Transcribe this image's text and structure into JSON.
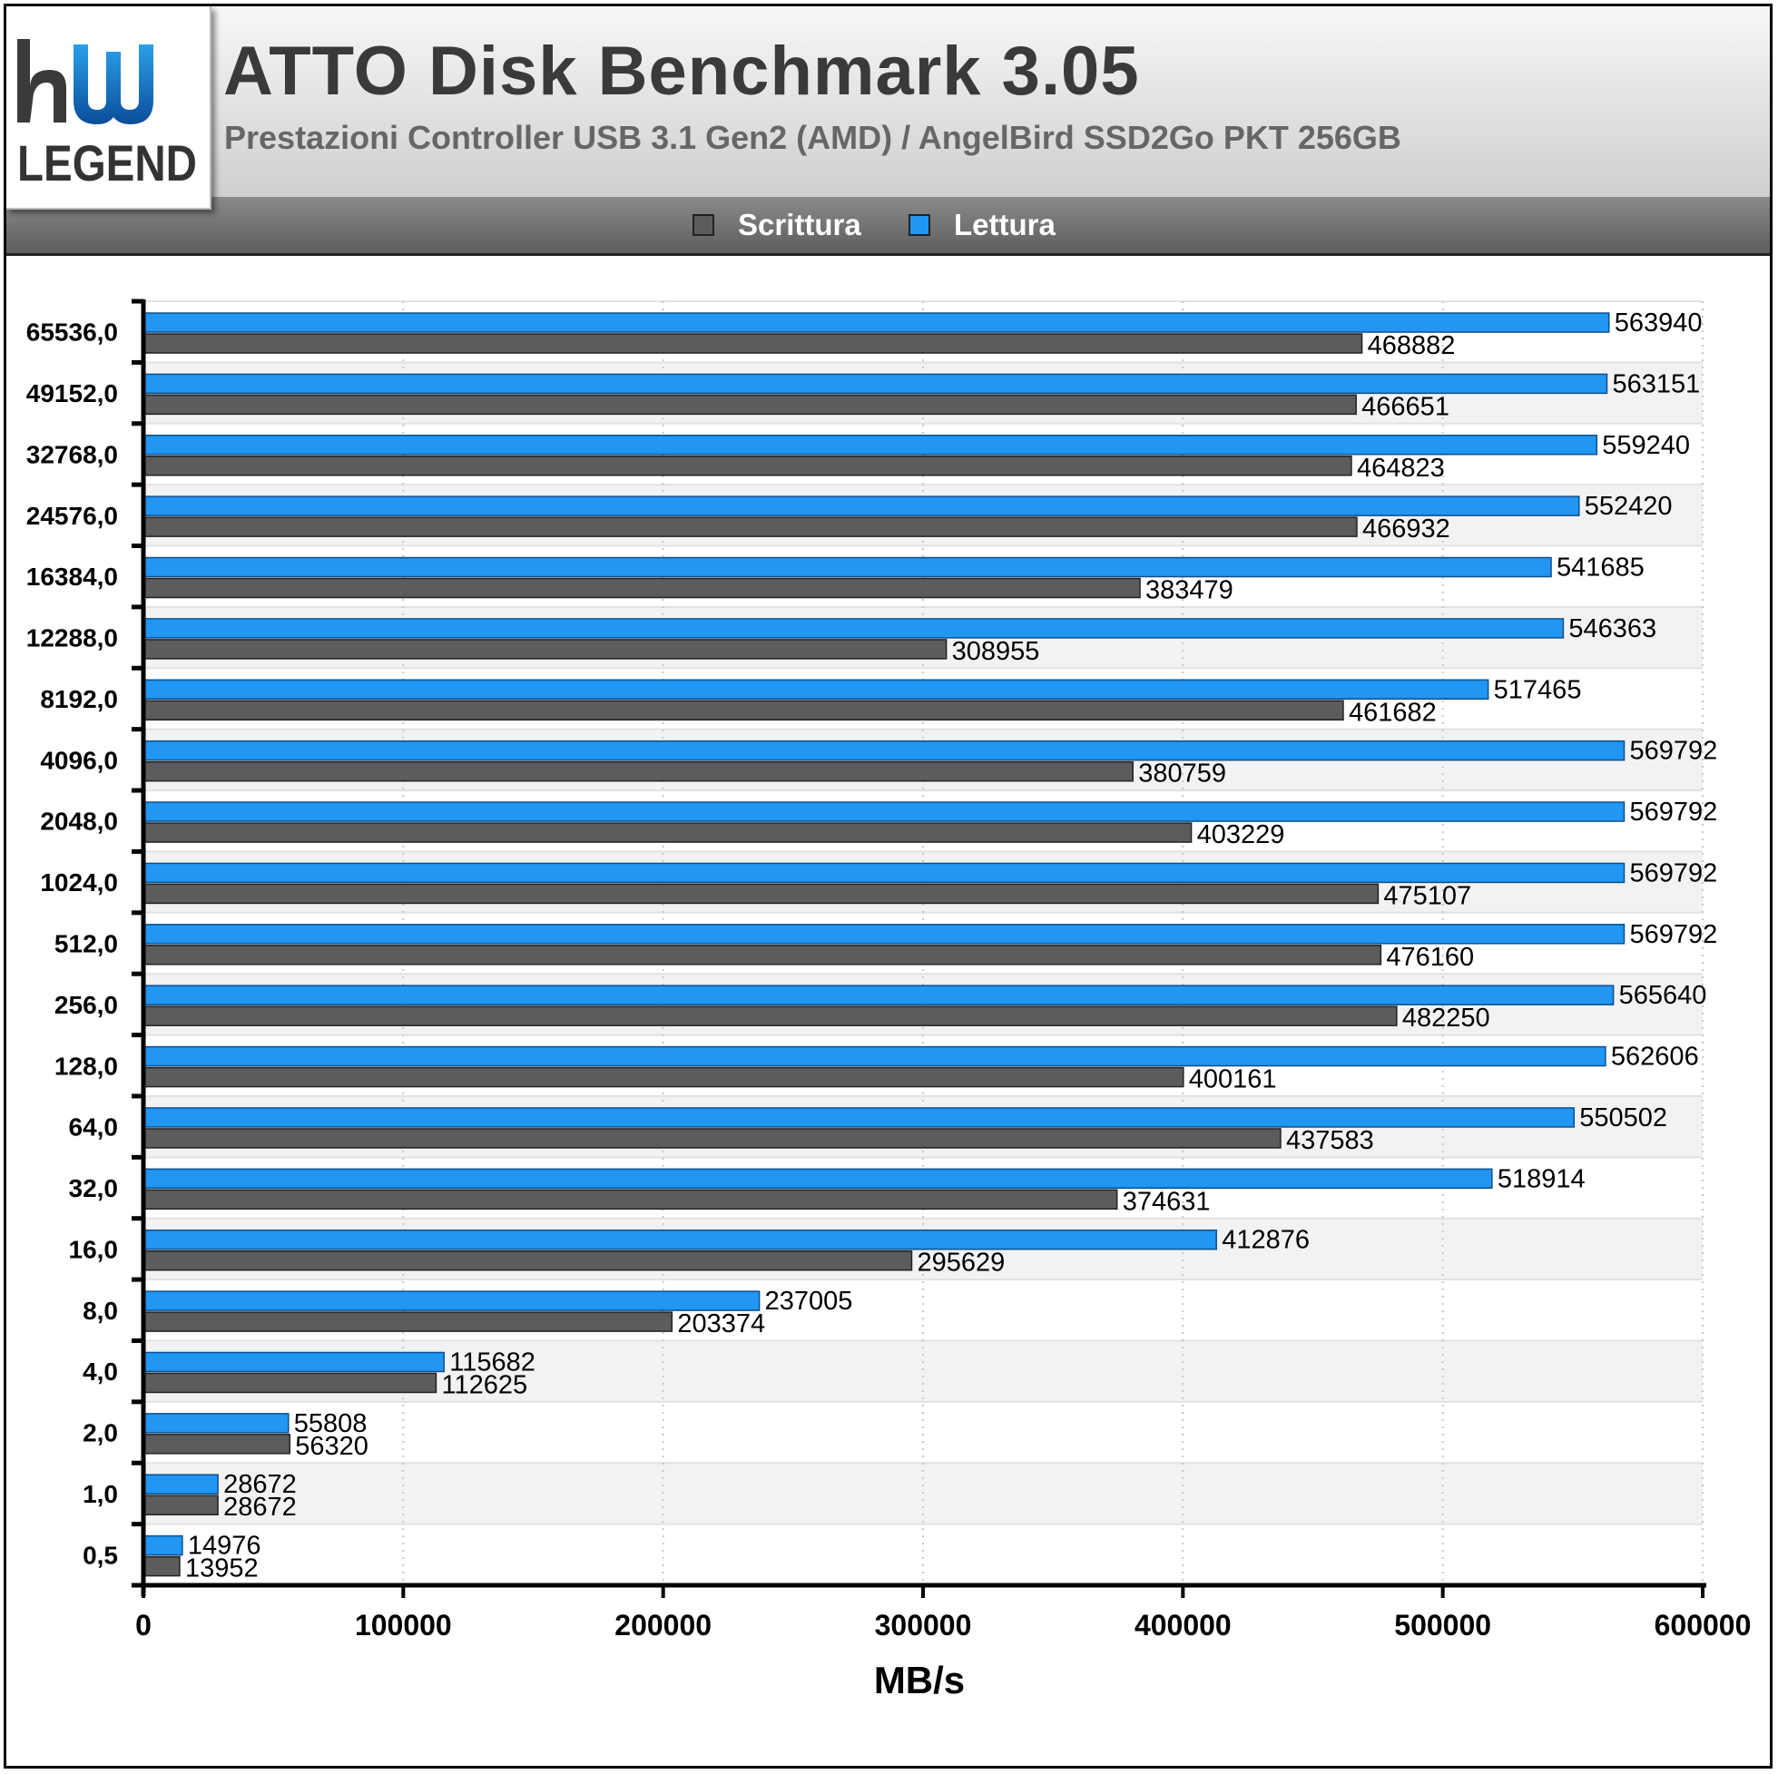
{
  "header": {
    "logo_text": "LEGEND",
    "title": "ATTO Disk Benchmark 3.05",
    "subtitle": "Prestazioni Controller USB 3.1 Gen2 (AMD) / AngelBird SSD2Go PKT 256GB"
  },
  "legend": {
    "items": [
      {
        "label": "Scrittura",
        "color": "#5c5c5c"
      },
      {
        "label": "Lettura",
        "color": "#2196f3"
      }
    ]
  },
  "chart_data": {
    "type": "bar",
    "orientation": "horizontal",
    "title": "ATTO Disk Benchmark 3.05",
    "subtitle": "Prestazioni Controller USB 3.1 Gen2 (AMD) / AngelBird SSD2Go PKT 256GB",
    "xlabel": "MB/s",
    "ylabel": "",
    "xlim": [
      0,
      600000
    ],
    "xticks": [
      0,
      100000,
      200000,
      300000,
      400000,
      500000,
      600000
    ],
    "grid": true,
    "legend_position": "top-center",
    "categories": [
      "65536,0",
      "49152,0",
      "32768,0",
      "24576,0",
      "16384,0",
      "12288,0",
      "8192,0",
      "4096,0",
      "2048,0",
      "1024,0",
      "512,0",
      "256,0",
      "128,0",
      "64,0",
      "32,0",
      "16,0",
      "8,0",
      "4,0",
      "2,0",
      "1,0",
      "0,5"
    ],
    "series": [
      {
        "name": "Lettura",
        "color": "#2196f3",
        "values": [
          563940,
          563151,
          559240,
          552420,
          541685,
          546363,
          517465,
          569792,
          569792,
          569792,
          569792,
          565640,
          562606,
          550502,
          518914,
          412876,
          237005,
          115682,
          55808,
          28672,
          14976
        ]
      },
      {
        "name": "Scrittura",
        "color": "#5c5c5c",
        "values": [
          468882,
          466651,
          464823,
          466932,
          383479,
          308955,
          461682,
          380759,
          403229,
          475107,
          476160,
          482250,
          400161,
          437583,
          374631,
          295629,
          203374,
          112625,
          56320,
          28672,
          13952
        ]
      }
    ]
  }
}
